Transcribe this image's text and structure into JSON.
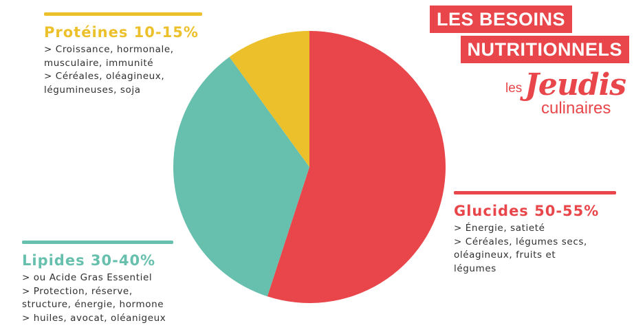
{
  "colors": {
    "red": "#e8464a",
    "teal": "#67bfad",
    "yellow": "#ecc02a",
    "text": "#2f2f2f"
  },
  "chart_data": {
    "type": "pie",
    "slices": [
      {
        "label": "Glucides 50-55%",
        "value": 55,
        "color": "#e8464a"
      },
      {
        "label": "Lipides 30-40%",
        "value": 35,
        "color": "#67bfad"
      },
      {
        "label": "Protéines 10-15%",
        "value": 10,
        "color": "#ecc02a"
      }
    ],
    "start_angle_deg": 0,
    "direction": "clockwise"
  },
  "title": {
    "line1": "LES BESOINS",
    "line2": "NUTRITIONNELS"
  },
  "logo": {
    "les": "les",
    "jeudis": "Jeudis",
    "culinaires": "culinaires"
  },
  "proteines": {
    "heading": "Protéines 10-15%",
    "lines": [
      "> Croissance, hormonale,",
      "musculaire, immunité",
      "> Céréales, oléagineux,",
      "légumineuses, soja"
    ]
  },
  "glucides": {
    "heading": "Glucides 50-55%",
    "lines": [
      "> Énergie, satieté",
      "> Céréales, légumes secs,",
      "oléagineux, fruits et",
      "légumes"
    ]
  },
  "lipides": {
    "heading": "Lipides 30-40%",
    "lines": [
      "> ou Acide Gras Essentiel",
      "> Protection, réserve,",
      "structure, énergie, hormone",
      "> huiles, avocat, oléanigeux"
    ]
  }
}
